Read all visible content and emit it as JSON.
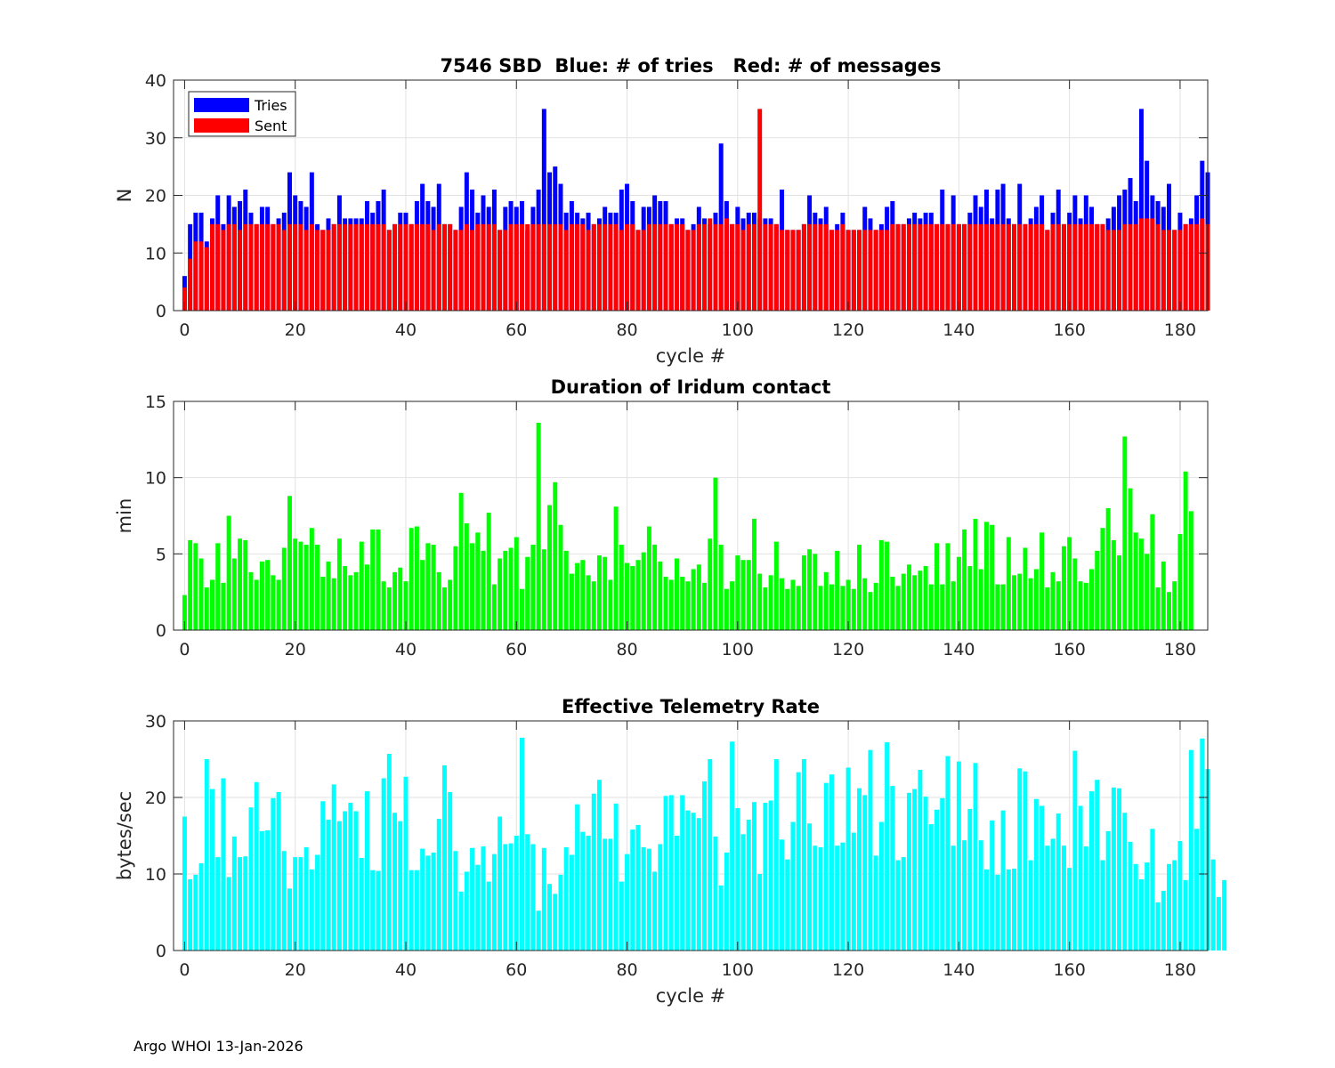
{
  "chart_data": [
    {
      "type": "bar",
      "stacked_overlay": true,
      "title": "7546 SBD  Blue: # of tries   Red: # of messages",
      "xlabel": "cycle #",
      "ylabel": "N",
      "xlim": [
        -2,
        185
      ],
      "ylim": [
        0,
        40
      ],
      "xticks": [
        0,
        20,
        40,
        60,
        80,
        100,
        120,
        140,
        160,
        180
      ],
      "yticks": [
        0,
        10,
        20,
        30,
        40
      ],
      "grid": true,
      "legend": "top-left",
      "x_start": 0,
      "series": [
        {
          "name": "Tries",
          "color": "#0000ff",
          "values": [
            6,
            15,
            17,
            17,
            12,
            16,
            20,
            15,
            20,
            18,
            19,
            21,
            17,
            15,
            18,
            18,
            15,
            16,
            17,
            24,
            20,
            19,
            18,
            24,
            15,
            14,
            16,
            15,
            20,
            16,
            16,
            16,
            16,
            19,
            17,
            19,
            21,
            14,
            15,
            17,
            17,
            15,
            19,
            22,
            19,
            18,
            22,
            15,
            15,
            14,
            18,
            24,
            21,
            17,
            20,
            18,
            21,
            14,
            18,
            19,
            18,
            19,
            14,
            18,
            21,
            35,
            24,
            25,
            22,
            17,
            19,
            17,
            16,
            17,
            15,
            16,
            18,
            17,
            17,
            21,
            22,
            19,
            14,
            18,
            18,
            20,
            19,
            19,
            15,
            16,
            16,
            14,
            15,
            18,
            16,
            15,
            17,
            29,
            19,
            15,
            18,
            16,
            17,
            17,
            16,
            16,
            16,
            15,
            21,
            14,
            14,
            14,
            15,
            20,
            17,
            16,
            18,
            14,
            15,
            17,
            14,
            14,
            14,
            18,
            16,
            14,
            15,
            18,
            19,
            15,
            15,
            16,
            17,
            16,
            17,
            17,
            15,
            21,
            15,
            20,
            15,
            15,
            17,
            20,
            18,
            21,
            16,
            21,
            22,
            16,
            15,
            22,
            15,
            16,
            18,
            20,
            14,
            17,
            21,
            15,
            17,
            20,
            16,
            20,
            18,
            15,
            15,
            16,
            18,
            20,
            21,
            23,
            19,
            35,
            26,
            20,
            19,
            18,
            22,
            14,
            17,
            15,
            16,
            20,
            26,
            24
          ]
        },
        {
          "name": "Sent",
          "color": "#ff0000",
          "values": [
            4,
            9,
            12,
            12,
            11,
            15,
            15,
            14,
            15,
            15,
            14,
            15,
            15,
            15,
            15,
            15,
            15,
            15,
            14,
            15,
            15,
            15,
            14,
            15,
            14,
            14,
            14,
            15,
            15,
            15,
            15,
            15,
            15,
            15,
            15,
            15,
            15,
            14,
            15,
            15,
            15,
            15,
            15,
            15,
            15,
            14,
            15,
            15,
            15,
            14,
            14,
            15,
            14,
            15,
            15,
            15,
            15,
            14,
            14,
            15,
            15,
            15,
            15,
            15,
            15,
            15,
            15,
            15,
            15,
            14,
            15,
            15,
            15,
            14,
            15,
            15,
            15,
            15,
            15,
            14,
            15,
            15,
            14,
            14,
            15,
            15,
            15,
            15,
            15,
            15,
            15,
            14,
            14,
            15,
            15,
            16,
            15,
            15,
            16,
            15,
            15,
            14,
            15,
            15,
            35,
            15,
            15,
            15,
            14,
            14,
            14,
            14,
            15,
            15,
            15,
            15,
            15,
            14,
            14,
            15,
            14,
            14,
            14,
            14,
            14,
            14,
            14,
            14,
            15,
            15,
            15,
            15,
            15,
            15,
            15,
            15,
            15,
            15,
            15,
            15,
            15,
            15,
            15,
            15,
            15,
            15,
            15,
            15,
            15,
            15,
            15,
            15,
            15,
            15,
            15,
            15,
            14,
            15,
            15,
            15,
            15,
            15,
            15,
            15,
            15,
            15,
            15,
            14,
            14,
            14,
            15,
            15,
            15,
            16,
            16,
            16,
            15,
            14,
            14,
            14,
            14,
            15,
            15,
            15,
            16,
            15
          ]
        }
      ]
    },
    {
      "type": "bar",
      "title": "Duration of Iridum contact",
      "xlabel": "",
      "ylabel": "min",
      "xlim": [
        -2,
        185
      ],
      "ylim": [
        0,
        15
      ],
      "xticks": [
        0,
        20,
        40,
        60,
        80,
        100,
        120,
        140,
        160,
        180
      ],
      "yticks": [
        0,
        5,
        10,
        15
      ],
      "grid": true,
      "x_start": 0,
      "series": [
        {
          "name": "Duration",
          "color": "#00ff00",
          "values": [
            2.3,
            5.9,
            5.7,
            4.7,
            2.8,
            3.3,
            5.7,
            3.1,
            7.5,
            4.7,
            6.0,
            5.9,
            3.8,
            3.3,
            4.5,
            4.6,
            3.6,
            3.3,
            5.4,
            8.8,
            6.0,
            5.8,
            5.6,
            6.7,
            5.6,
            3.5,
            4.5,
            3.4,
            6.0,
            4.2,
            3.6,
            3.8,
            5.8,
            4.3,
            6.6,
            6.6,
            3.2,
            2.8,
            3.8,
            4.1,
            3.2,
            6.7,
            6.8,
            4.6,
            5.7,
            5.6,
            3.8,
            2.8,
            3.3,
            5.5,
            9.0,
            7.0,
            5.7,
            6.4,
            5.2,
            7.7,
            3.0,
            4.7,
            5.2,
            5.4,
            6.1,
            2.7,
            4.8,
            5.6,
            13.6,
            5.3,
            8.2,
            9.7,
            6.9,
            5.2,
            3.7,
            4.4,
            4.6,
            3.6,
            3.2,
            4.9,
            4.8,
            3.3,
            8.1,
            5.6,
            4.4,
            4.2,
            4.6,
            5.1,
            6.8,
            5.6,
            4.5,
            3.5,
            3.3,
            4.7,
            3.5,
            3.2,
            4.0,
            4.3,
            3.1,
            6.0,
            10.0,
            5.6,
            2.7,
            3.2,
            4.9,
            4.6,
            4.6,
            7.3,
            3.7,
            2.8,
            3.6,
            5.8,
            3.4,
            2.7,
            3.3,
            2.9,
            4.9,
            5.3,
            5.0,
            2.9,
            3.8,
            3.0,
            5.2,
            2.9,
            3.3,
            2.7,
            5.6,
            3.4,
            2.5,
            3.1,
            5.9,
            5.8,
            3.5,
            2.9,
            3.7,
            4.3,
            3.6,
            3.9,
            4.2,
            3.0,
            5.7,
            3.0,
            5.7,
            3.2,
            4.8,
            6.6,
            4.2,
            7.3,
            4.0,
            7.1,
            6.9,
            3.0,
            3.0,
            6.1,
            3.6,
            3.7,
            5.4,
            3.4,
            4.0,
            6.4,
            2.8,
            3.8,
            3.2,
            5.5,
            6.1,
            4.7,
            3.2,
            3.1,
            4.0,
            5.2,
            6.7,
            8.0,
            5.9,
            4.9,
            12.7,
            9.3,
            6.4,
            6.0,
            5.0,
            7.6,
            2.8,
            4.5,
            2.5,
            3.2,
            6.3,
            10.4,
            7.8
          ]
        }
      ]
    },
    {
      "type": "bar",
      "title": "Effective Telemetry Rate",
      "xlabel": "cycle #",
      "ylabel": "bytes/sec",
      "xlim": [
        -2,
        185
      ],
      "ylim": [
        0,
        30
      ],
      "xticks": [
        0,
        20,
        40,
        60,
        80,
        100,
        120,
        140,
        160,
        180
      ],
      "yticks": [
        0,
        10,
        20,
        30
      ],
      "grid": true,
      "x_start": 0,
      "series": [
        {
          "name": "Rate",
          "color": "#00ffff",
          "values": [
            17.5,
            9.3,
            9.9,
            11.4,
            25.0,
            21.1,
            12.2,
            22.5,
            9.6,
            14.9,
            12.2,
            12.3,
            18.7,
            22.0,
            15.6,
            15.7,
            19.9,
            20.7,
            13.0,
            8.1,
            12.2,
            12.2,
            13.5,
            10.6,
            12.5,
            19.5,
            17.1,
            21.7,
            16.9,
            18.2,
            19.3,
            18.2,
            12.1,
            20.8,
            10.5,
            10.4,
            22.5,
            25.7,
            18.0,
            16.9,
            22.7,
            10.5,
            10.5,
            13.3,
            12.4,
            12.8,
            17.2,
            24.2,
            20.7,
            13.0,
            7.7,
            10.3,
            13.4,
            11.2,
            13.6,
            9.0,
            12.6,
            17.5,
            13.9,
            14.0,
            15.0,
            27.8,
            15.2,
            13.9,
            5.2,
            13.4,
            8.7,
            7.4,
            9.9,
            13.5,
            12.5,
            19.1,
            15.5,
            15.0,
            20.5,
            22.3,
            14.6,
            14.6,
            19.2,
            9.0,
            12.6,
            15.8,
            16.4,
            13.5,
            13.3,
            10.3,
            13.9,
            20.2,
            20.3,
            15.0,
            20.3,
            18.3,
            18.0,
            17.3,
            22.1,
            25.0,
            14.9,
            8.5,
            12.8,
            27.3,
            18.6,
            15.2,
            17.1,
            19.4,
            10.0,
            19.3,
            19.6,
            25.0,
            14.5,
            11.9,
            16.8,
            23.3,
            25.0,
            16.6,
            13.7,
            13.5,
            21.9,
            23.0,
            13.7,
            14.1,
            23.9,
            15.4,
            21.2,
            20.3,
            26.2,
            12.4,
            16.8,
            27.2,
            21.5,
            11.8,
            12.2,
            20.6,
            21.1,
            23.6,
            20.1,
            16.5,
            18.4,
            19.9,
            25.4,
            13.7,
            24.7,
            14.4,
            18.5,
            24.5,
            14.4,
            10.6,
            17.0,
            9.9,
            18.3,
            10.6,
            10.7,
            23.8,
            23.4,
            11.8,
            19.8,
            18.9,
            13.7,
            14.6,
            17.9,
            13.7,
            10.8,
            26.1,
            18.9,
            13.6,
            20.8,
            22.3,
            11.8,
            15.6,
            21.3,
            21.2,
            18.0,
            14.2,
            11.3,
            9.3,
            11.5,
            15.9,
            6.3,
            7.8,
            11.3,
            11.8,
            14.3,
            9.2,
            26.2,
            15.9,
            27.7,
            23.7,
            11.9,
            7.0,
            9.2
          ]
        }
      ]
    }
  ],
  "footer": "Argo WHOI 13-Jan-2026"
}
